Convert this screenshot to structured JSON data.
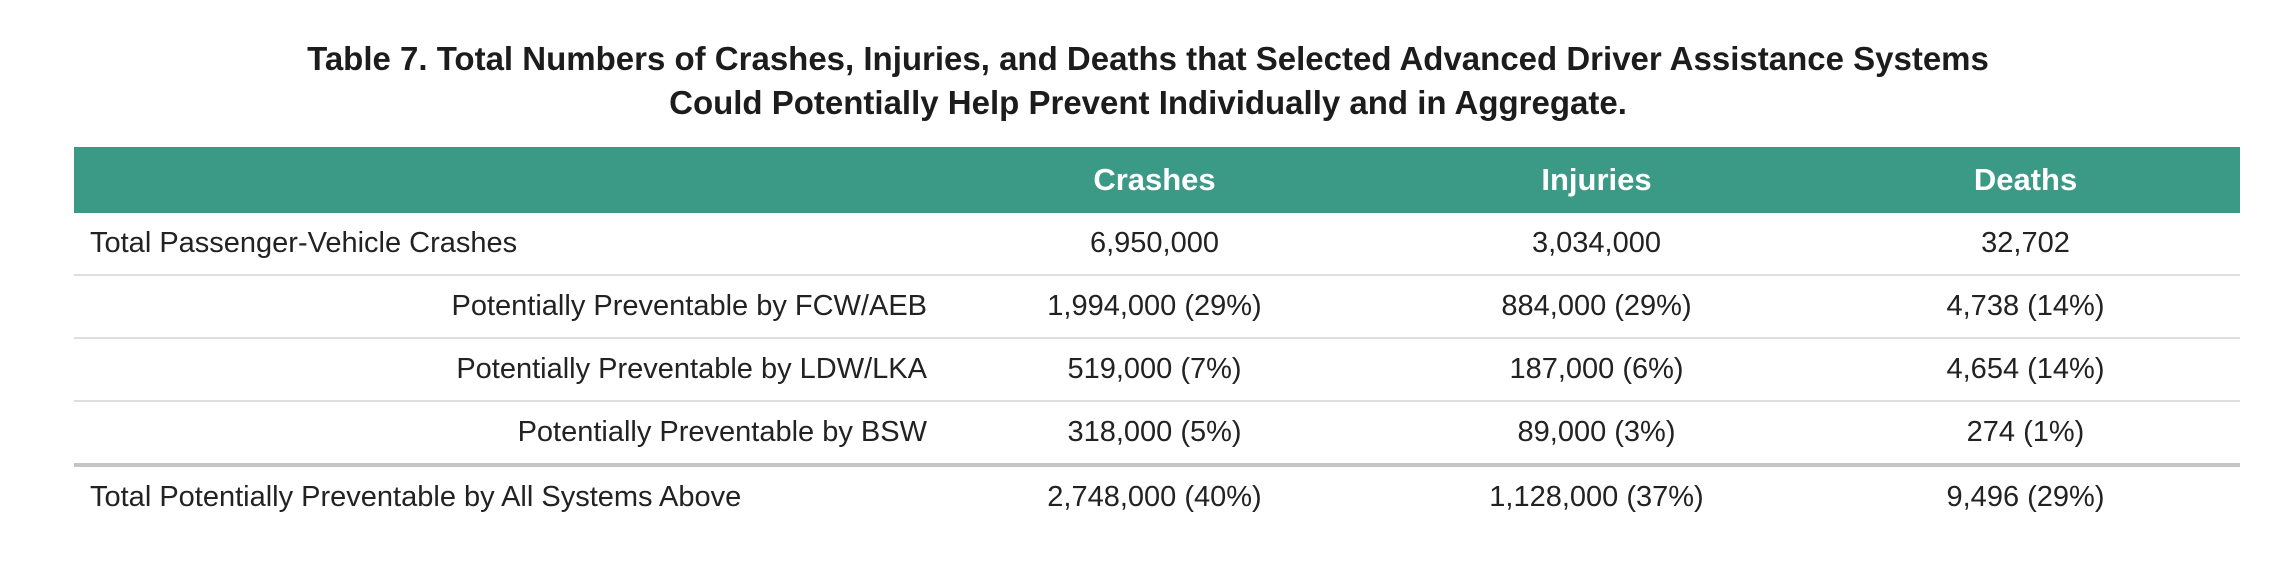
{
  "header": {
    "title_lines": [
      "Table 7. Total Numbers of Crashes, Injuries, and Deaths that Selected Advanced Driver Assistance Systems",
      "Could Potentially Help Prevent Individually and in Aggregate."
    ]
  },
  "table": {
    "columns": [
      "Crashes",
      "Injuries",
      "Deaths"
    ],
    "rows": [
      [
        "Total Passenger-Vehicle Crashes",
        "6,950,000",
        "3,034,000",
        "32,702"
      ],
      [
        "Potentially Preventable by FCW/AEB",
        "1,994,000 (29%)",
        "884,000 (29%)",
        "4,738 (14%)"
      ],
      [
        "Potentially Preventable by LDW/LKA",
        "519,000 (7%)",
        "187,000 (6%)",
        "4,654 (14%)"
      ],
      [
        "Potentially Preventable by BSW",
        "318,000 (5%)",
        "89,000 (3%)",
        "274 (1%)"
      ],
      [
        "Total Potentially Preventable by All Systems Above",
        "2,748,000 (40%)",
        "1,128,000 (37%)",
        "9,496 (29%)"
      ]
    ]
  }
}
